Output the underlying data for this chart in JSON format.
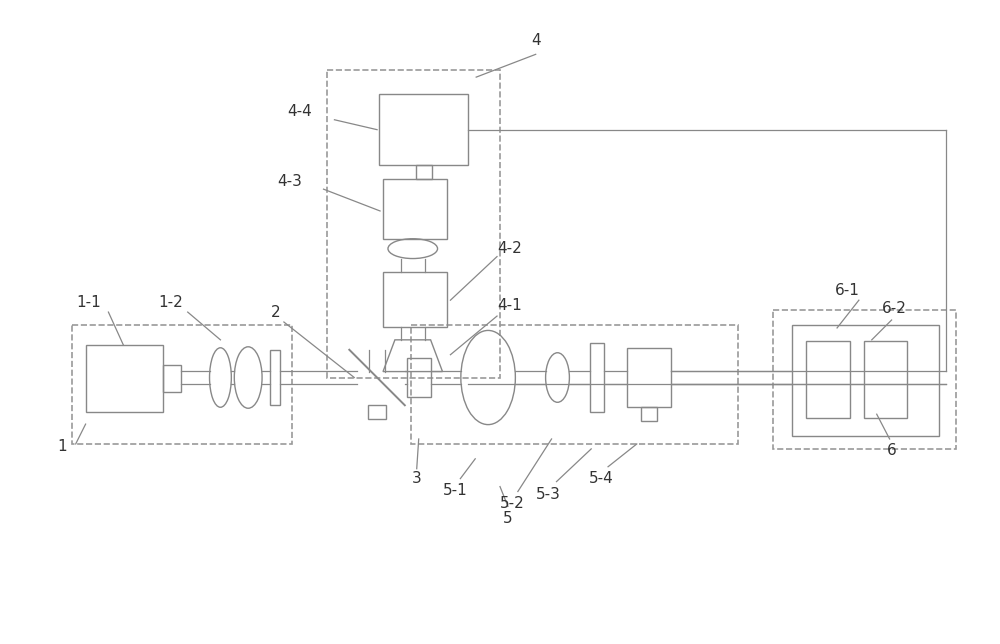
{
  "bg_color": "#ffffff",
  "lc": "#aaaaaa",
  "dc": "#888888",
  "tc": "#333333",
  "dsc": "#999999",
  "fig_width": 10.0,
  "fig_height": 6.44
}
